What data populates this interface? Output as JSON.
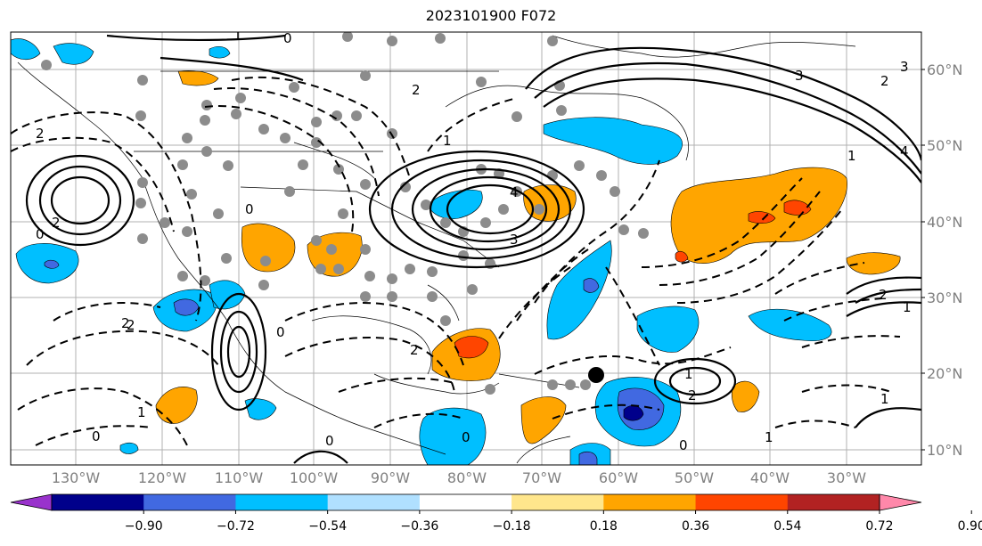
{
  "title": "2023101900 F072",
  "lat_labels": [
    "60°N",
    "50°N",
    "40°N",
    "30°N",
    "20°N",
    "10°N"
  ],
  "lon_labels": [
    "130°W",
    "120°W",
    "110°W",
    "100°W",
    "90°W",
    "80°W",
    "70°W",
    "60°W",
    "50°W",
    "40°W",
    "30°W"
  ],
  "colorbar": {
    "ticks": [
      "−0.90",
      "−0.72",
      "−0.54",
      "−0.36",
      "−0.18",
      "0.18",
      "0.36",
      "0.54",
      "0.72",
      "0.90"
    ],
    "colors": [
      "#9932cc",
      "#00008b",
      "#4169e1",
      "#00bfff",
      "#b0e0ff",
      "#ffffff",
      "#ffe68c",
      "#ffa500",
      "#ff4500",
      "#b22222",
      "#ff88aa"
    ]
  },
  "contour_labels": [
    "0",
    "2",
    "1",
    "3",
    "2",
    "0",
    "4",
    "3",
    "2",
    "3",
    "4",
    "1",
    "2",
    "0",
    "1",
    "2",
    "0",
    "1",
    "2",
    "0",
    "1",
    "2",
    "0",
    "0",
    "1",
    "0",
    "1",
    "1",
    "2",
    "2"
  ],
  "colors": {
    "positive_fill": "#ffa500",
    "strong_positive": "#ff4500",
    "negative_fill": "#00bfff",
    "strong_negative": "#4169e1",
    "extreme_negative": "#00008b",
    "stations": "#8c8c8c"
  }
}
